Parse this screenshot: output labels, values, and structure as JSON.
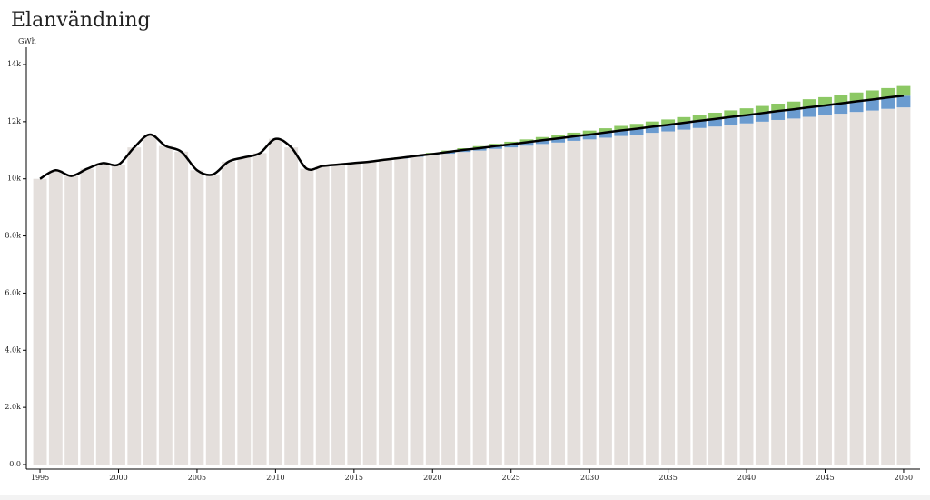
{
  "chart_data": {
    "type": "stacked-bar-line",
    "title": "Elanvändning",
    "y_label": "GWh",
    "categories": [
      "1995",
      null,
      null,
      null,
      null,
      "2000",
      null,
      null,
      null,
      null,
      "2005",
      null,
      null,
      null,
      null,
      "2010",
      null,
      null,
      null,
      null,
      "2015",
      null,
      null,
      null,
      null,
      "2020",
      null,
      null,
      null,
      null,
      "2025",
      null,
      null,
      null,
      null,
      "2030",
      null,
      null,
      null,
      null,
      "2035",
      null,
      null,
      null,
      null,
      "2040",
      null,
      null,
      null,
      null,
      "2045",
      null,
      null,
      null,
      null,
      "2050"
    ],
    "series": [
      {
        "color": "#e4dfdc",
        "values": [
          10000,
          10300,
          10100,
          10350,
          10550,
          10500,
          11100,
          11550,
          11150,
          10950,
          10300,
          10150,
          10600,
          10750,
          10900,
          11400,
          11100,
          10350,
          10450,
          10500,
          10550,
          10600,
          10660,
          10710,
          10770,
          10820,
          10880,
          10940,
          10990,
          11050,
          11100,
          11160,
          11220,
          11270,
          11330,
          11380,
          11440,
          11500,
          11550,
          11610,
          11660,
          11720,
          11780,
          11830,
          11890,
          11940,
          12000,
          12060,
          12110,
          12170,
          12220,
          12280,
          12340,
          12390,
          12450,
          12500
        ]
      },
      {
        "color": "#6a9bcf",
        "values": [
          0,
          0,
          0,
          0,
          0,
          0,
          0,
          0,
          0,
          0,
          0,
          0,
          0,
          0,
          0,
          0,
          0,
          0,
          0,
          0,
          0,
          0,
          12,
          24,
          36,
          48,
          60,
          72,
          84,
          96,
          108,
          120,
          132,
          144,
          156,
          168,
          180,
          192,
          204,
          216,
          228,
          240,
          252,
          264,
          276,
          288,
          300,
          312,
          324,
          336,
          348,
          360,
          372,
          384,
          396,
          408
        ]
      },
      {
        "color": "#8cc864",
        "values": [
          0,
          0,
          0,
          0,
          0,
          0,
          0,
          0,
          0,
          0,
          0,
          0,
          0,
          0,
          0,
          0,
          0,
          0,
          0,
          0,
          0,
          0,
          10,
          20,
          30,
          40,
          50,
          60,
          70,
          80,
          90,
          100,
          110,
          120,
          130,
          140,
          150,
          160,
          170,
          180,
          190,
          200,
          210,
          220,
          230,
          240,
          250,
          260,
          270,
          280,
          290,
          300,
          310,
          320,
          330,
          340
        ]
      },
      {
        "type": "line",
        "color": "#000000",
        "values": [
          10000,
          10300,
          10100,
          10350,
          10550,
          10500,
          11100,
          11550,
          11150,
          10950,
          10300,
          10150,
          10600,
          10750,
          10900,
          11400,
          11100,
          10350,
          10450,
          10500,
          10550,
          10600,
          10672,
          10734,
          10806,
          10868,
          10940,
          11012,
          11074,
          11146,
          11208,
          11280,
          11352,
          11414,
          11486,
          11548,
          11620,
          11692,
          11754,
          11826,
          11888,
          11960,
          12032,
          12094,
          12166,
          12228,
          12300,
          12372,
          12434,
          12506,
          12568,
          12640,
          12712,
          12774,
          12846,
          12908
        ]
      }
    ],
    "ylim": [
      0,
      14000
    ],
    "yticks": [
      {
        "value": 0,
        "label": "0.0"
      },
      {
        "value": 2000,
        "label": "2.0k"
      },
      {
        "value": 4000,
        "label": "4.0k"
      },
      {
        "value": 6000,
        "label": "6.0k"
      },
      {
        "value": 8000,
        "label": "8.0k"
      },
      {
        "value": 10000,
        "label": "10k"
      },
      {
        "value": 12000,
        "label": "12k"
      },
      {
        "value": 14000,
        "label": "14k"
      }
    ]
  }
}
